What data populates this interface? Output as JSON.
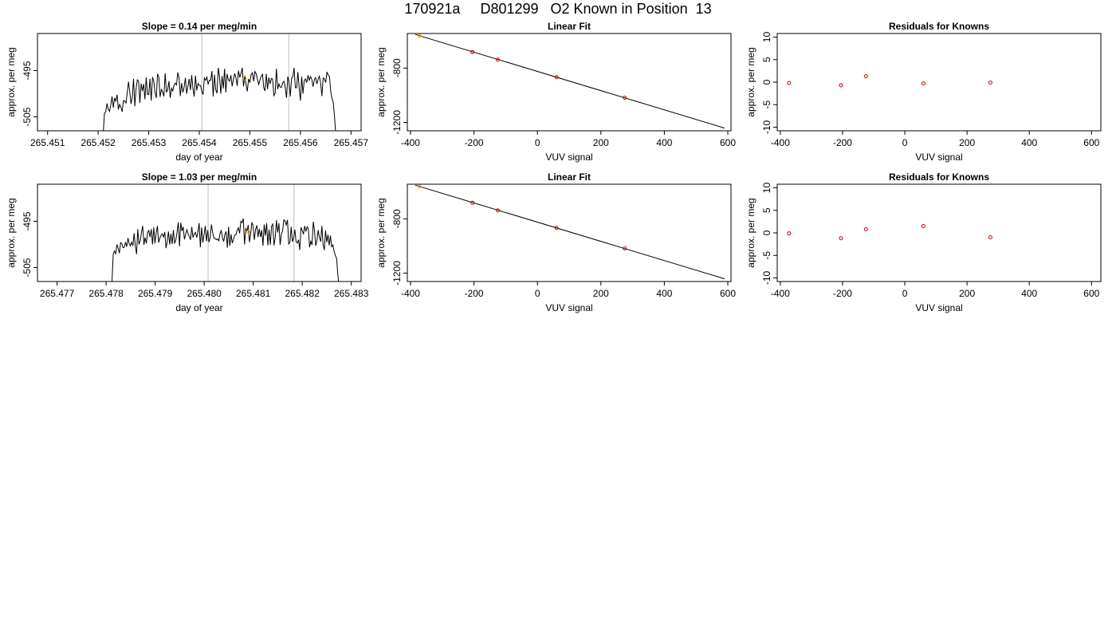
{
  "figure_title": "170921a     D801299   O2 Known in Position  13",
  "colors": {
    "trace": "#000000",
    "grid": "#bebebe",
    "marker_orange": "#ffa500",
    "marker_red": "#cd0000"
  },
  "chart_data": [
    {
      "type": "line",
      "title": "Slope =  0.14  per meg/min",
      "xlabel": "day of year",
      "ylabel": "approx. per meg",
      "xlim": [
        265.4508,
        265.4572
      ],
      "ylim": [
        -508.0,
        -487.0
      ],
      "xticks": [
        "265.451",
        "265.452",
        "265.453",
        "265.454",
        "265.455",
        "265.456",
        "265.457"
      ],
      "xtick_values": [
        265.451,
        265.452,
        265.453,
        265.454,
        265.455,
        265.456,
        265.457
      ],
      "yticks": [
        "-505",
        "-495"
      ],
      "ytick_values": [
        -505,
        -495
      ],
      "vlines": [
        265.45405,
        265.45577
      ],
      "mean_point": {
        "x": 265.4549,
        "y": -496.7
      },
      "x_start": 265.4521,
      "x_end": 265.4567,
      "values": [
        -508.6,
        -504.2,
        -503.9,
        -502.1,
        -503.4,
        -503.8,
        -502.4,
        -500.6,
        -503.0,
        -500.9,
        -501.6,
        -500.2,
        -503.4,
        -502.3,
        -502.9,
        -503.9,
        -501.5,
        -501.6,
        -502.0,
        -499.8,
        -497.4,
        -499.6,
        -502.2,
        -500.7,
        -496.8,
        -502.7,
        -498.9,
        -497.0,
        -497.3,
        -502.0,
        -497.8,
        -499.4,
        -497.9,
        -501.2,
        -496.5,
        -500.1,
        -500.2,
        -496.8,
        -501.5,
        -496.4,
        -497.3,
        -499.8,
        -500.9,
        -495.7,
        -496.4,
        -500.7,
        -499.1,
        -499.6,
        -500.6,
        -495.6,
        -499.7,
        -499.1,
        -497.3,
        -500.9,
        -498.8,
        -499.4,
        -498.2,
        -497.7,
        -498.1,
        -495.4,
        -496.7,
        -500.5,
        -497.7,
        -499.7,
        -498.6,
        -496.6,
        -500.0,
        -498.4,
        -496.8,
        -499.2,
        -496.0,
        -498.9,
        -500.6,
        -496.1,
        -499.3,
        -497.8,
        -498.2,
        -498.2,
        -499.5,
        -500.2,
        -496.6,
        -497.1,
        -496.4,
        -497.9,
        -497.1,
        -497.1,
        -495.1,
        -500.6,
        -495.9,
        -499.1,
        -499.9,
        -494.4,
        -496.3,
        -500.0,
        -496.2,
        -498.9,
        -494.6,
        -499.7,
        -495.7,
        -497.0,
        -497.3,
        -496.0,
        -498.4,
        -496.9,
        -495.6,
        -496.6,
        -498.3,
        -495.0,
        -496.5,
        -495.6,
        -494.4,
        -498.4,
        -496.1,
        -498.0,
        -499.5,
        -496.8,
        -497.6,
        -495.9,
        -495.5,
        -497.3,
        -495.2,
        -495.7,
        -496.9,
        -498.0,
        -497.0,
        -496.2,
        -495.8,
        -498.7,
        -499.4,
        -495.7,
        -499.0,
        -496.5,
        -497.9,
        -496.7,
        -496.8,
        -500.4,
        -499.9,
        -494.6,
        -499.0,
        -497.9,
        -498.6,
        -498.6,
        -497.6,
        -497.3,
        -498.6,
        -500.9,
        -496.3,
        -497.5,
        -500.6,
        -496.6,
        -496.4,
        -494.4,
        -498.7,
        -498.7,
        -495.3,
        -498.7,
        -501.5,
        -496.3,
        -500.0,
        -497.2,
        -496.8,
        -497.6,
        -496.0,
        -497.1,
        -496.3,
        -496.9,
        -498.5,
        -497.0,
        -496.5,
        -497.9,
        -496.9,
        -496.2,
        -497.7,
        -500.5,
        -496.6,
        -496.8,
        -497.6,
        -495.3,
        -496.0,
        -496.3,
        -499.6,
        -501.0,
        -502.0,
        -505.0,
        -509.0
      ]
    },
    {
      "type": "scatter",
      "title": "Linear Fit",
      "xlabel": "VUV signal",
      "ylabel": "approx. per meg",
      "xlim": [
        -410,
        610
      ],
      "ylim": [
        -1262,
        -545
      ],
      "xticks": [
        "-400",
        "-200",
        "0",
        "200",
        "400",
        "600"
      ],
      "xtick_values": [
        -400,
        -200,
        0,
        200,
        400,
        600
      ],
      "yticks": [
        "-1200",
        "-800"
      ],
      "ytick_values": [
        -1200,
        -800
      ],
      "fit_line": {
        "x": [
          -385,
          590
        ],
        "y": [
          -552,
          -1242
        ]
      },
      "x": [
        -372,
        -205,
        -125,
        60,
        275
      ],
      "y": [
        -562,
        -682,
        -738,
        -867,
        -1018
      ],
      "highlight_index": 0
    },
    {
      "type": "scatter",
      "title": "Residuals for Knowns",
      "xlabel": "VUV signal",
      "ylabel": "approx. per meg",
      "xlim": [
        -410,
        630
      ],
      "ylim": [
        -10.8,
        10.8
      ],
      "xticks": [
        "-400",
        "-200",
        "0",
        "200",
        "400",
        "600"
      ],
      "xtick_values": [
        -400,
        -200,
        0,
        200,
        400,
        600
      ],
      "yticks": [
        "-10",
        "-5",
        "0",
        "5",
        "10"
      ],
      "ytick_values": [
        -10,
        -5,
        0,
        5,
        10
      ],
      "x": [
        -372,
        -205,
        -125,
        60,
        275
      ],
      "y": [
        -0.2,
        -0.7,
        1.3,
        -0.3,
        -0.1
      ]
    },
    {
      "type": "line",
      "title": "Slope =  1.03  per meg/min",
      "xlabel": "day of year",
      "ylabel": "approx. per meg",
      "xlim": [
        265.4766,
        265.4832
      ],
      "ylim": [
        -508.0,
        -487.0
      ],
      "xticks": [
        "265.477",
        "265.478",
        "265.479",
        "265.480",
        "265.481",
        "265.482",
        "265.483"
      ],
      "xtick_values": [
        265.477,
        265.478,
        265.479,
        265.48,
        265.481,
        265.482,
        265.483
      ],
      "yticks": [
        "-505",
        "-495"
      ],
      "ytick_values": [
        -505,
        -495
      ],
      "vlines": [
        265.48008,
        265.48183
      ],
      "mean_point": {
        "x": 265.4809,
        "y": -497.3
      },
      "x_start": 265.47812,
      "x_end": 265.48275,
      "values": [
        -508.0,
        -502.1,
        -501.4,
        -502.0,
        -500.0,
        -500.8,
        -501.9,
        -499.6,
        -499.8,
        -500.7,
        -500.6,
        -499.5,
        -500.5,
        -498.6,
        -499.8,
        -500.3,
        -499.5,
        -500.3,
        -497.6,
        -500.3,
        -502.1,
        -496.7,
        -500.0,
        -499.2,
        -497.4,
        -496.0,
        -500.1,
        -498.5,
        -499.8,
        -497.4,
        -497.0,
        -498.4,
        -496.7,
        -500.0,
        -496.3,
        -499.8,
        -497.5,
        -496.0,
        -499.6,
        -498.6,
        -498.0,
        -497.7,
        -498.4,
        -497.3,
        -500.8,
        -499.4,
        -497.2,
        -500.0,
        -497.7,
        -499.9,
        -496.9,
        -499.8,
        -499.0,
        -497.4,
        -495.2,
        -500.4,
        -495.3,
        -497.1,
        -496.2,
        -498.9,
        -497.8,
        -496.8,
        -497.7,
        -498.3,
        -499.0,
        -496.2,
        -498.5,
        -497.7,
        -497.4,
        -498.5,
        -497.3,
        -495.4,
        -500.6,
        -496.3,
        -499.6,
        -497.9,
        -496.0,
        -499.3,
        -496.9,
        -499.5,
        -498.5,
        -495.7,
        -497.4,
        -498.6,
        -498.7,
        -499.0,
        -498.8,
        -499.2,
        -497.7,
        -497.0,
        -498.5,
        -499.4,
        -497.8,
        -497.2,
        -500.7,
        -496.2,
        -500.3,
        -497.8,
        -499.7,
        -498.9,
        -498.0,
        -497.9,
        -496.9,
        -496.4,
        -497.6,
        -495.0,
        -495.3,
        -494.4,
        -500.0,
        -496.6,
        -497.1,
        -495.8,
        -499.5,
        -497.7,
        -495.2,
        -496.1,
        -499.0,
        -496.7,
        -495.9,
        -498.4,
        -496.6,
        -498.4,
        -496.9,
        -500.3,
        -495.7,
        -498.1,
        -495.4,
        -500.2,
        -496.8,
        -500.1,
        -496.1,
        -495.6,
        -500.2,
        -498.5,
        -494.8,
        -497.4,
        -495.4,
        -500.1,
        -497.8,
        -497.1,
        -494.7,
        -494.9,
        -495.8,
        -494.7,
        -499.9,
        -499.5,
        -496.2,
        -499.4,
        -498.6,
        -496.8,
        -499.4,
        -499.7,
        -499.0,
        -501.2,
        -496.3,
        -497.0,
        -497.8,
        -496.0,
        -497.2,
        -496.2,
        -496.6,
        -500.6,
        -499.3,
        -500.1,
        -495.1,
        -497.0,
        -500.3,
        -499.1,
        -496.9,
        -498.5,
        -499.4,
        -496.0,
        -499.9,
        -501.2,
        -497.0,
        -499.5,
        -497.9,
        -500.2,
        -498.1,
        -500.5,
        -500.1,
        -501.5,
        -502.4,
        -503.0,
        -506.5,
        -509.0
      ]
    },
    {
      "type": "scatter",
      "title": "Linear Fit",
      "xlabel": "VUV signal",
      "ylabel": "approx. per meg",
      "xlim": [
        -410,
        610
      ],
      "ylim": [
        -1262,
        -545
      ],
      "xticks": [
        "-400",
        "-200",
        "0",
        "200",
        "400",
        "600"
      ],
      "xtick_values": [
        -400,
        -200,
        0,
        200,
        400,
        600
      ],
      "yticks": [
        "-1200",
        "-800"
      ],
      "ytick_values": [
        -1200,
        -800
      ],
      "fit_line": {
        "x": [
          -385,
          590
        ],
        "y": [
          -552,
          -1242
        ]
      },
      "x": [
        -372,
        -205,
        -125,
        60,
        275
      ],
      "y": [
        -562,
        -682,
        -738,
        -867,
        -1018
      ],
      "highlight_index": 0
    },
    {
      "type": "scatter",
      "title": "Residuals for Knowns",
      "xlabel": "VUV signal",
      "ylabel": "approx. per meg",
      "xlim": [
        -410,
        630
      ],
      "ylim": [
        -10.8,
        10.8
      ],
      "xticks": [
        "-400",
        "-200",
        "0",
        "200",
        "400",
        "600"
      ],
      "xtick_values": [
        -400,
        -200,
        0,
        200,
        400,
        600
      ],
      "yticks": [
        "-10",
        "-5",
        "0",
        "5",
        "10"
      ],
      "ytick_values": [
        -10,
        -5,
        0,
        5,
        10
      ],
      "x": [
        -372,
        -205,
        -125,
        60,
        275
      ],
      "y": [
        -0.1,
        -1.2,
        0.8,
        1.5,
        -1.0
      ]
    }
  ]
}
